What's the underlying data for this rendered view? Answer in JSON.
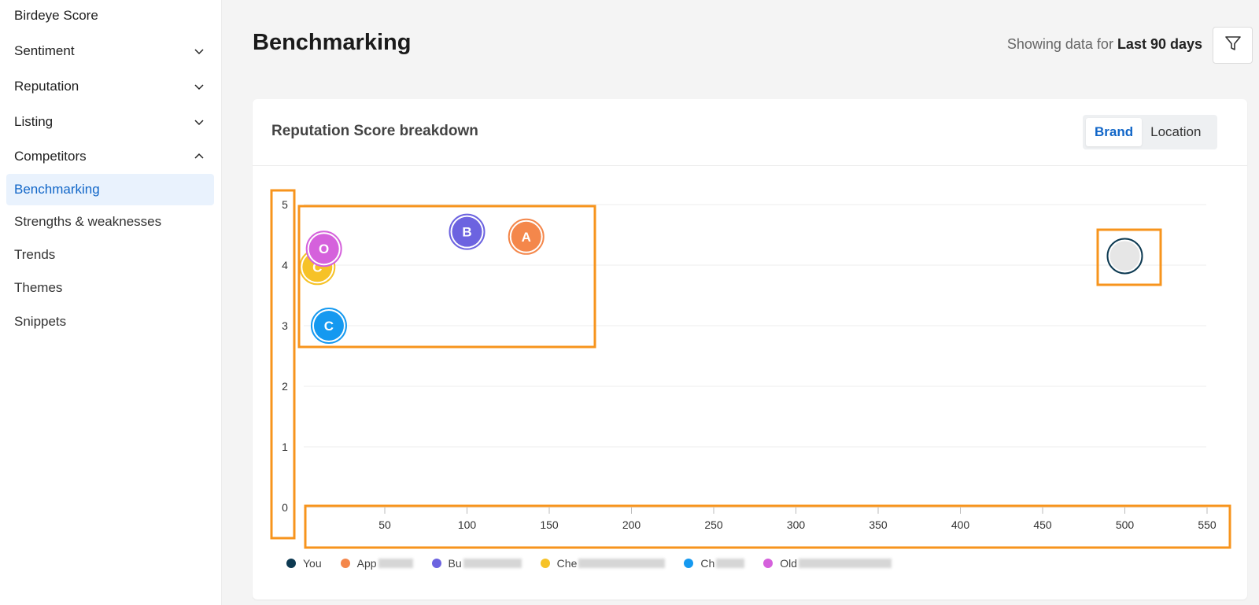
{
  "sidebar": {
    "items": [
      {
        "label": "Birdeye Score",
        "chevron": ""
      },
      {
        "label": "Sentiment",
        "chevron": "down"
      },
      {
        "label": "Reputation",
        "chevron": "down"
      },
      {
        "label": "Listing",
        "chevron": "down"
      },
      {
        "label": "Competitors",
        "chevron": "up"
      },
      {
        "label": "Benchmarking",
        "active": true
      },
      {
        "label": "Strengths & weaknesses"
      },
      {
        "label": "Trends"
      },
      {
        "label": "Themes"
      },
      {
        "label": "Snippets"
      }
    ]
  },
  "header": {
    "title": "Benchmarking",
    "showing_prefix": "Showing data for ",
    "showing_range": "Last 90 days"
  },
  "card": {
    "title": "Reputation Score breakdown",
    "toggle": {
      "brand": "Brand",
      "location": "Location",
      "selected": "Brand"
    }
  },
  "chart_data": {
    "type": "scatter",
    "x_ticks": [
      "50",
      "100",
      "150",
      "200",
      "250",
      "300",
      "350",
      "400",
      "450",
      "500",
      "550"
    ],
    "y_ticks": [
      "0",
      "1",
      "2",
      "3",
      "4",
      "5"
    ],
    "xlim": [
      0,
      550
    ],
    "ylim": [
      0,
      5
    ],
    "grid": true,
    "legend_position": "bottom",
    "points": [
      {
        "name": "You",
        "label": "",
        "x": 500,
        "y": 4.15,
        "color": "#0d3a52"
      },
      {
        "name": "App",
        "label": "A",
        "x": 136,
        "y": 4.47,
        "color": "#f4874b"
      },
      {
        "name": "Bu",
        "label": "B",
        "x": 100,
        "y": 4.55,
        "color": "#6c63e0"
      },
      {
        "name": "Che",
        "label": "C",
        "x": 9,
        "y": 3.97,
        "color": "#f6c227"
      },
      {
        "name": "Ch",
        "label": "C",
        "x": 16,
        "y": 3.0,
        "color": "#1599f0"
      },
      {
        "name": "Old",
        "label": "O",
        "x": 13,
        "y": 4.27,
        "color": "#d561dc"
      }
    ]
  },
  "legend": [
    {
      "name": "You",
      "color": "#0d3a52"
    },
    {
      "name": "App",
      "color": "#f4874b"
    },
    {
      "name": "Bu",
      "color": "#6c63e0"
    },
    {
      "name": "Che",
      "color": "#f6c227"
    },
    {
      "name": "Ch",
      "color": "#1599f0"
    },
    {
      "name": "Old",
      "color": "#d561dc"
    }
  ],
  "annotation_color": "#f7941d"
}
